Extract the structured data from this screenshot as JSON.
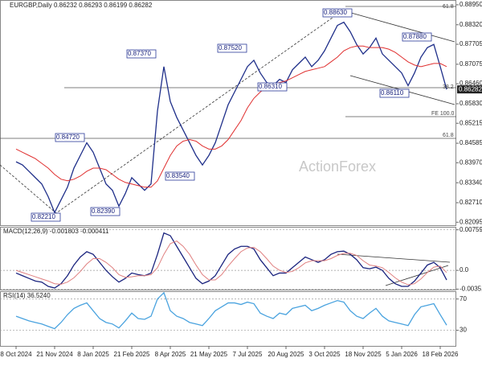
{
  "chart_data": [
    {
      "type": "line",
      "title": "EURGBP,Daily 0.86232 0.86293 0.86199 0.86282",
      "watermark": "ActionForex",
      "grid": false,
      "categories": [
        "8 Oct 2024",
        null,
        null,
        null,
        null,
        null,
        "21 Nov 2024",
        null,
        null,
        null,
        null,
        null,
        "8 Jan 2025",
        null,
        null,
        null,
        null,
        null,
        "21 Feb 2025",
        null,
        null,
        null,
        null,
        null,
        "8 Apr 2025",
        null,
        null,
        null,
        null,
        null,
        "21 May 2025",
        null,
        null,
        null,
        null,
        null,
        "7 Jul 2025",
        null,
        null,
        null,
        null,
        null,
        "20 Aug 2025",
        null,
        null,
        null,
        null,
        null,
        "3 Oct 2025",
        null,
        null,
        null,
        null,
        null,
        "18 Nov 2025",
        null,
        null,
        null,
        null,
        null,
        "5 Jan 2026",
        null,
        null,
        null,
        null,
        null,
        "18 Feb 2026",
        null
      ],
      "series": [
        {
          "color": "#1f2f8a",
          "values": [
            0.84,
            0.839,
            0.837,
            0.835,
            0.833,
            0.829,
            0.824,
            0.828,
            0.832,
            0.838,
            0.842,
            0.846,
            0.843,
            0.838,
            0.833,
            0.831,
            0.826,
            0.83,
            0.835,
            0.833,
            0.831,
            0.833,
            0.856,
            0.87,
            0.859,
            0.854,
            0.85,
            0.846,
            0.842,
            0.839,
            0.842,
            0.846,
            0.852,
            0.858,
            0.862,
            0.866,
            0.87,
            0.872,
            0.868,
            0.865,
            0.864,
            0.866,
            0.865,
            0.869,
            0.871,
            0.873,
            0.87,
            0.872,
            0.875,
            0.879,
            0.883,
            0.884,
            0.881,
            0.877,
            0.874,
            0.876,
            0.879,
            0.874,
            0.872,
            0.87,
            0.868,
            0.864,
            0.868,
            0.873,
            0.876,
            0.877,
            0.87,
            0.86282
          ]
        },
        {
          "color": "#e03030",
          "values": [
            0.844,
            0.843,
            0.842,
            0.841,
            0.8395,
            0.838,
            0.836,
            0.8345,
            0.834,
            0.8345,
            0.8355,
            0.837,
            0.838,
            0.838,
            0.8375,
            0.836,
            0.8345,
            0.8335,
            0.833,
            0.8325,
            0.832,
            0.832,
            0.834,
            0.838,
            0.842,
            0.845,
            0.8465,
            0.847,
            0.8465,
            0.845,
            0.844,
            0.844,
            0.845,
            0.847,
            0.85,
            0.853,
            0.857,
            0.86,
            0.862,
            0.8635,
            0.8645,
            0.865,
            0.8655,
            0.8665,
            0.8675,
            0.8685,
            0.869,
            0.8695,
            0.87,
            0.8715,
            0.873,
            0.875,
            0.876,
            0.8765,
            0.8765,
            0.876,
            0.876,
            0.876,
            0.8755,
            0.8745,
            0.873,
            0.8715,
            0.8705,
            0.87,
            0.8705,
            0.871,
            0.871,
            0.87
          ]
        }
      ],
      "ylim": [
        0.82,
        0.8905
      ],
      "yticks": [
        {
          "value": 0.8895,
          "label": "0.88950"
        },
        {
          "value": 0.8832,
          "label": "0.88320"
        },
        0.87705,
        0.87075,
        {
          "value": 0.8646,
          "label": "0.86460"
        },
        {
          "value": 0.8583,
          "label": "0.85830"
        },
        0.85215,
        0.84585,
        {
          "value": 0.8397,
          "label": "0.83970"
        },
        {
          "value": 0.8334,
          "label": "0.83340"
        },
        {
          "value": 0.8271,
          "label": "0.82710"
        },
        0.82095
      ],
      "price_label": "0.86282",
      "annotations": [
        "0.88630",
        "0.87880",
        "0.87370",
        "0.87520",
        "0.86310",
        "0.86110",
        "0.84720",
        "0.83540",
        "0.82210",
        "0.82390",
        "61.8",
        "38.2",
        "FE 100.0",
        "61.8"
      ]
    },
    {
      "type": "line",
      "title": "MACD(12,26,9) -0.001803 -0.000411",
      "grid": true,
      "series": [
        {
          "color": "#1a237e",
          "values": [
            -0.0005,
            -0.001,
            -0.0015,
            -0.002,
            -0.0022,
            -0.003,
            -0.0033,
            -0.0025,
            -0.001,
            0.001,
            0.0025,
            0.0035,
            0.003,
            0.0015,
            0.0,
            -0.0012,
            -0.0022,
            -0.0015,
            -0.0005,
            -0.0008,
            -0.001,
            -0.0005,
            0.003,
            0.007,
            0.0065,
            0.0045,
            0.0025,
            0.0005,
            -0.0015,
            -0.0025,
            -0.002,
            -0.001,
            0.001,
            0.003,
            0.004,
            0.0045,
            0.0045,
            0.004,
            0.002,
            0.0005,
            -0.001,
            -0.0005,
            -0.0005,
            0.0005,
            0.0015,
            0.0025,
            0.002,
            0.0015,
            0.002,
            0.003,
            0.0035,
            0.0036,
            0.003,
            0.002,
            0.0005,
            0.0003,
            0.0006,
            0.0,
            -0.0015,
            -0.0025,
            -0.003,
            -0.003,
            -0.002,
            -0.0005,
            0.001,
            0.0015,
            0.0005,
            -0.001803
          ]
        },
        {
          "color": "#e08080",
          "values": [
            0.0,
            -0.0004,
            -0.0008,
            -0.0012,
            -0.0016,
            -0.002,
            -0.0025,
            -0.0026,
            -0.0022,
            -0.0014,
            -0.0002,
            0.0012,
            0.0022,
            0.0022,
            0.0015,
            0.0005,
            -0.0008,
            -0.0013,
            -0.0012,
            -0.001,
            -0.001,
            -0.0008,
            0.0005,
            0.003,
            0.005,
            0.0055,
            0.0045,
            0.003,
            0.001,
            -0.0008,
            -0.0018,
            -0.0018,
            -0.0008,
            0.0008,
            0.0022,
            0.0035,
            0.0042,
            0.0043,
            0.0035,
            0.0022,
            0.0008,
            0.0,
            -0.0004,
            -0.0002,
            0.0005,
            0.0014,
            0.0018,
            0.0018,
            0.0018,
            0.0022,
            0.0028,
            0.0032,
            0.0032,
            0.0028,
            0.0018,
            0.001,
            0.0008,
            0.0005,
            -0.0004,
            -0.0014,
            -0.0022,
            -0.0027,
            -0.0025,
            -0.0016,
            -0.0004,
            0.0006,
            0.0008,
            -0.000411
          ]
        }
      ],
      "ylim": [
        -0.0036,
        0.008
      ],
      "yticks": [
        0.007597,
        {
          "value": 0,
          "label": "0.0"
        },
        -0.003515
      ]
    },
    {
      "type": "line",
      "title": "RSI(14) 36.5240",
      "grid": true,
      "series": [
        {
          "color": "#4aa3df",
          "values": [
            48,
            45,
            42,
            40,
            38,
            35,
            32,
            40,
            50,
            58,
            62,
            65,
            55,
            45,
            40,
            38,
            33,
            42,
            52,
            45,
            44,
            48,
            70,
            78,
            55,
            48,
            45,
            40,
            38,
            36,
            45,
            55,
            60,
            65,
            65,
            63,
            66,
            64,
            52,
            48,
            45,
            52,
            50,
            58,
            60,
            62,
            55,
            58,
            62,
            65,
            68,
            66,
            55,
            48,
            45,
            52,
            58,
            48,
            42,
            40,
            38,
            36,
            50,
            60,
            62,
            64,
            50,
            36.524
          ]
        }
      ],
      "ylim": [
        10,
        80
      ],
      "yticks": [
        70,
        30
      ]
    }
  ]
}
